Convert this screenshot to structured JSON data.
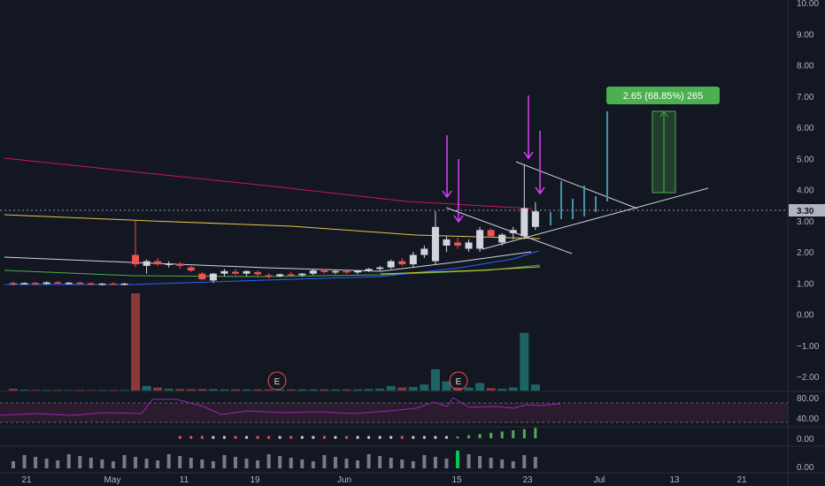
{
  "chart_data": {
    "type": "candlestick",
    "price_axis": {
      "ticks": [
        "10.00",
        "9.00",
        "8.00",
        "7.00",
        "6.00",
        "5.00",
        "4.00",
        "3.00",
        "2.00",
        "1.00",
        "0.00",
        "−1.00",
        "−2.00"
      ],
      "range": [
        -2.3,
        10.05
      ],
      "last_price": "3.30"
    },
    "rsi_axis": {
      "ticks": [
        "80.00",
        "40.00"
      ]
    },
    "indicator_axis": {
      "ticks": [
        "0.00"
      ]
    },
    "volume_indicator_axis": {
      "ticks": [
        "0.00"
      ]
    },
    "time_axis": {
      "ticks": [
        "21",
        "May",
        "11",
        "19",
        "Jun",
        "15",
        "23",
        "Jul",
        "13",
        "21"
      ]
    },
    "candles": [
      [
        1.0,
        1.05,
        0.92,
        0.98
      ],
      [
        0.98,
        1.02,
        0.95,
        1.0
      ],
      [
        1.0,
        1.04,
        0.96,
        0.97
      ],
      [
        0.97,
        1.05,
        0.94,
        1.02
      ],
      [
        1.02,
        1.06,
        0.98,
        1.0
      ],
      [
        1.0,
        1.03,
        0.96,
        1.01
      ],
      [
        1.01,
        1.05,
        0.97,
        0.99
      ],
      [
        0.99,
        1.02,
        0.93,
        0.96
      ],
      [
        0.96,
        1.0,
        0.92,
        0.98
      ],
      [
        0.98,
        1.02,
        0.95,
        0.97
      ],
      [
        0.97,
        1.01,
        0.93,
        0.98
      ],
      [
        1.9,
        3.0,
        1.5,
        1.6
      ],
      [
        1.55,
        1.75,
        1.3,
        1.7
      ],
      [
        1.7,
        1.8,
        1.55,
        1.6
      ],
      [
        1.6,
        1.7,
        1.5,
        1.62
      ],
      [
        1.62,
        1.68,
        1.45,
        1.55
      ],
      [
        1.5,
        1.55,
        1.35,
        1.4
      ],
      [
        1.3,
        1.35,
        1.08,
        1.12
      ],
      [
        1.08,
        1.32,
        1.0,
        1.3
      ],
      [
        1.3,
        1.45,
        1.22,
        1.38
      ],
      [
        1.36,
        1.45,
        1.25,
        1.3
      ],
      [
        1.3,
        1.4,
        1.22,
        1.38
      ],
      [
        1.35,
        1.4,
        1.2,
        1.28
      ],
      [
        1.25,
        1.32,
        1.15,
        1.22
      ],
      [
        1.22,
        1.3,
        1.18,
        1.28
      ],
      [
        1.28,
        1.35,
        1.22,
        1.25
      ],
      [
        1.25,
        1.32,
        1.2,
        1.3
      ],
      [
        1.3,
        1.45,
        1.25,
        1.4
      ],
      [
        1.4,
        1.45,
        1.3,
        1.35
      ],
      [
        1.35,
        1.42,
        1.28,
        1.38
      ],
      [
        1.38,
        1.44,
        1.3,
        1.34
      ],
      [
        1.34,
        1.42,
        1.28,
        1.4
      ],
      [
        1.4,
        1.48,
        1.35,
        1.45
      ],
      [
        1.45,
        1.55,
        1.38,
        1.5
      ],
      [
        1.5,
        1.75,
        1.45,
        1.7
      ],
      [
        1.7,
        1.8,
        1.55,
        1.6
      ],
      [
        1.6,
        2.0,
        1.5,
        1.9
      ],
      [
        1.9,
        2.2,
        1.8,
        2.1
      ],
      [
        1.7,
        3.3,
        1.6,
        2.8
      ],
      [
        2.2,
        2.5,
        2.0,
        2.4
      ],
      [
        2.3,
        2.45,
        2.1,
        2.2
      ],
      [
        2.1,
        2.4,
        2.0,
        2.3
      ],
      [
        2.1,
        2.8,
        2.0,
        2.7
      ],
      [
        2.7,
        2.75,
        2.45,
        2.5
      ],
      [
        2.3,
        2.6,
        2.2,
        2.55
      ],
      [
        2.6,
        2.8,
        2.4,
        2.7
      ],
      [
        2.5,
        4.8,
        2.4,
        3.4
      ],
      [
        2.8,
        3.6,
        2.7,
        3.3
      ]
    ],
    "volumes": [
      0.06,
      0.03,
      0.02,
      0.02,
      0.02,
      0.02,
      0.02,
      0.02,
      0.02,
      0.02,
      0.02,
      3.2,
      0.15,
      0.1,
      0.06,
      0.05,
      0.05,
      0.05,
      0.05,
      0.04,
      0.04,
      0.04,
      0.04,
      0.04,
      0.04,
      0.04,
      0.04,
      0.04,
      0.04,
      0.04,
      0.04,
      0.04,
      0.05,
      0.06,
      0.15,
      0.1,
      0.12,
      0.2,
      0.7,
      0.3,
      0.1,
      0.1,
      0.25,
      0.08,
      0.06,
      0.1,
      1.9,
      0.2
    ],
    "measure": {
      "label": "2.65 (68.85%) 265",
      "from": 3.85,
      "to": 6.5
    },
    "earnings_markers": [
      "E",
      "E"
    ]
  },
  "colors": {
    "background": "#131722",
    "up": "#d1d4dc",
    "down": "#ef5350",
    "last_price_tag": "#b2b5be",
    "measure": "#4caf50",
    "arrows": "#e040fb",
    "ma_red": "#c2185b",
    "ma_yellow": "#e6c34a",
    "rsi": "#9c27b0",
    "projection": "#4a8fa8"
  }
}
